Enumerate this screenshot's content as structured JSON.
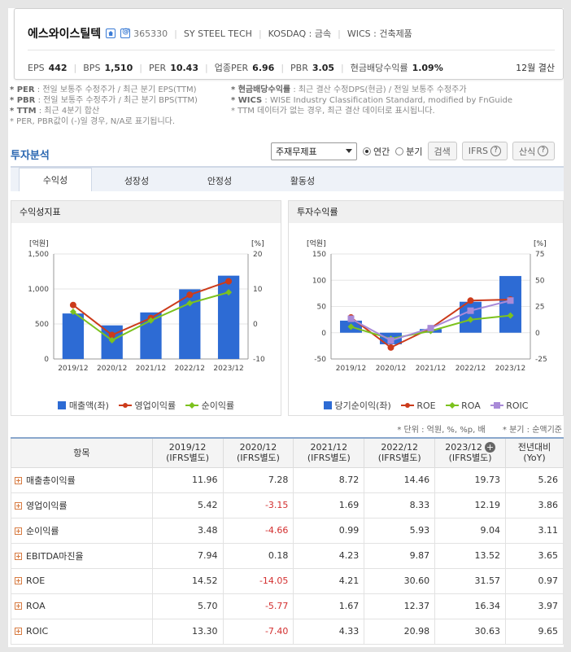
{
  "company": {
    "name": "에스와이스틸텍",
    "code": "365330",
    "english": "SY STEEL TECH",
    "market": "KOSDAQ : 금속",
    "wics": "WICS : 건축제품"
  },
  "metrics": [
    {
      "label": "EPS",
      "value": "442"
    },
    {
      "label": "BPS",
      "value": "1,510"
    },
    {
      "label": "PER",
      "value": "10.43"
    },
    {
      "label": "업종PER",
      "value": "6.96"
    },
    {
      "label": "PBR",
      "value": "3.05"
    },
    {
      "label": "현금배당수익률",
      "value": "1.09%"
    }
  ],
  "settlement": "12월 결산",
  "notes": {
    "per_key": "* PER",
    "per_text": ": 전일 보통주 수정주가 / 최근 분기 EPS(TTM)",
    "pbr_key": "* PBR",
    "pbr_text": ": 전일 보통주 수정주가 / 최근 분기 BPS(TTM)",
    "ttm_key": "* TTM",
    "ttm_text": ": 최근 4분기 합산",
    "neg_text": "* PER, PBR값이 (-)일 경우, N/A로 표기됩니다.",
    "div_key": "* 현금배당수익률",
    "div_text": ": 최근 결산 수정DPS(현금) / 전일 보통주 수정주가",
    "wics_key": "* WICS",
    "wics_text": ": WISE Industry Classification Standard, modified by FnGuide",
    "ttm_none": "* TTM 데이터가 없는 경우, 최근 결산 데이터로 표시됩니다."
  },
  "analysis": {
    "title": "투자분석",
    "select_value": "주재무제표",
    "radio_annual": "연간",
    "radio_quarter": "분기",
    "search_label": "검색",
    "ifrs_label": "IFRS",
    "formula_label": "산식",
    "tabs": [
      "수익성",
      "성장성",
      "안정성",
      "활동성"
    ]
  },
  "panel1": {
    "title": "수익성지표",
    "left_unit": "[억원]",
    "right_unit": "[%]",
    "legend": [
      "매출액(좌)",
      "영업이익률",
      "순이익률"
    ]
  },
  "panel2": {
    "title": "투자수익률",
    "left_unit": "[억원]",
    "right_unit": "[%]",
    "legend": [
      "당기순이익(좌)",
      "ROE",
      "ROA",
      "ROIC"
    ]
  },
  "chart_data": [
    {
      "type": "bar",
      "title": "수익성지표",
      "categories": [
        "2019/12",
        "2020/12",
        "2021/12",
        "2022/12",
        "2023/12"
      ],
      "ylim": [
        0,
        1500
      ],
      "y2lim": [
        -10,
        20
      ],
      "yticks": [
        "0",
        "500",
        "1,000",
        "1,500"
      ],
      "y2ticks": [
        "-10",
        "0",
        "10",
        "20"
      ],
      "series": [
        {
          "name": "매출액(좌)",
          "type": "bar",
          "axis": "left",
          "color": "#2d6bd4",
          "values": [
            650,
            480,
            665,
            995,
            1190
          ]
        },
        {
          "name": "영업이익률",
          "type": "line",
          "axis": "right",
          "color": "#cc3b1b",
          "values": [
            5.42,
            -3.15,
            1.69,
            8.33,
            12.19
          ]
        },
        {
          "name": "순이익률",
          "type": "line",
          "axis": "right",
          "color": "#7cc21e",
          "values": [
            3.48,
            -4.66,
            0.99,
            5.93,
            9.04
          ]
        }
      ]
    },
    {
      "type": "bar",
      "title": "투자수익률",
      "categories": [
        "2019/12",
        "2020/12",
        "2021/12",
        "2022/12",
        "2023/12"
      ],
      "ylim": [
        -50,
        150
      ],
      "y2lim": [
        -25,
        75
      ],
      "yticks": [
        "-50",
        "0",
        "50",
        "100",
        "150"
      ],
      "y2ticks": [
        "-25",
        "0",
        "25",
        "50",
        "75"
      ],
      "series": [
        {
          "name": "당기순이익(좌)",
          "type": "bar",
          "axis": "left",
          "color": "#2d6bd4",
          "values": [
            23,
            -22,
            7,
            59,
            108
          ]
        },
        {
          "name": "ROE",
          "type": "line",
          "axis": "right",
          "color": "#cc3b1b",
          "values": [
            14.52,
            -14.05,
            4.21,
            30.6,
            31.57
          ]
        },
        {
          "name": "ROA",
          "type": "line",
          "axis": "right",
          "color": "#7cc21e",
          "values": [
            5.7,
            -5.77,
            1.67,
            12.37,
            16.34
          ]
        },
        {
          "name": "ROIC",
          "type": "line",
          "axis": "right",
          "color": "#a98ad8",
          "values": [
            13.3,
            -7.4,
            4.33,
            20.98,
            30.63
          ]
        }
      ]
    }
  ],
  "unit_note": "* 단위 : 억원, %, %p, 배",
  "quarter_note": "* 분기 : 순액기준",
  "table": {
    "headers": [
      {
        "l1": "항목",
        "l2": ""
      },
      {
        "l1": "2019/12",
        "l2": "(IFRS별도)"
      },
      {
        "l1": "2020/12",
        "l2": "(IFRS별도)"
      },
      {
        "l1": "2021/12",
        "l2": "(IFRS별도)"
      },
      {
        "l1": "2022/12",
        "l2": "(IFRS별도)"
      },
      {
        "l1": "2023/12",
        "l2": "(IFRS별도)"
      },
      {
        "l1": "전년대비",
        "l2": "(YoY)"
      }
    ],
    "rows": [
      {
        "label": "매출총이익률",
        "values": [
          "11.96",
          "7.28",
          "8.72",
          "14.46",
          "19.73",
          "5.26"
        ]
      },
      {
        "label": "영업이익률",
        "values": [
          "5.42",
          "-3.15",
          "1.69",
          "8.33",
          "12.19",
          "3.86"
        ]
      },
      {
        "label": "순이익률",
        "values": [
          "3.48",
          "-4.66",
          "0.99",
          "5.93",
          "9.04",
          "3.11"
        ]
      },
      {
        "label": "EBITDA마진율",
        "values": [
          "7.94",
          "0.18",
          "4.23",
          "9.87",
          "13.52",
          "3.65"
        ]
      },
      {
        "label": "ROE",
        "values": [
          "14.52",
          "-14.05",
          "4.21",
          "30.60",
          "31.57",
          "0.97"
        ]
      },
      {
        "label": "ROA",
        "values": [
          "5.70",
          "-5.77",
          "1.67",
          "12.37",
          "16.34",
          "3.97"
        ]
      },
      {
        "label": "ROIC",
        "values": [
          "13.30",
          "-7.40",
          "4.33",
          "20.98",
          "30.63",
          "9.65"
        ]
      }
    ]
  }
}
